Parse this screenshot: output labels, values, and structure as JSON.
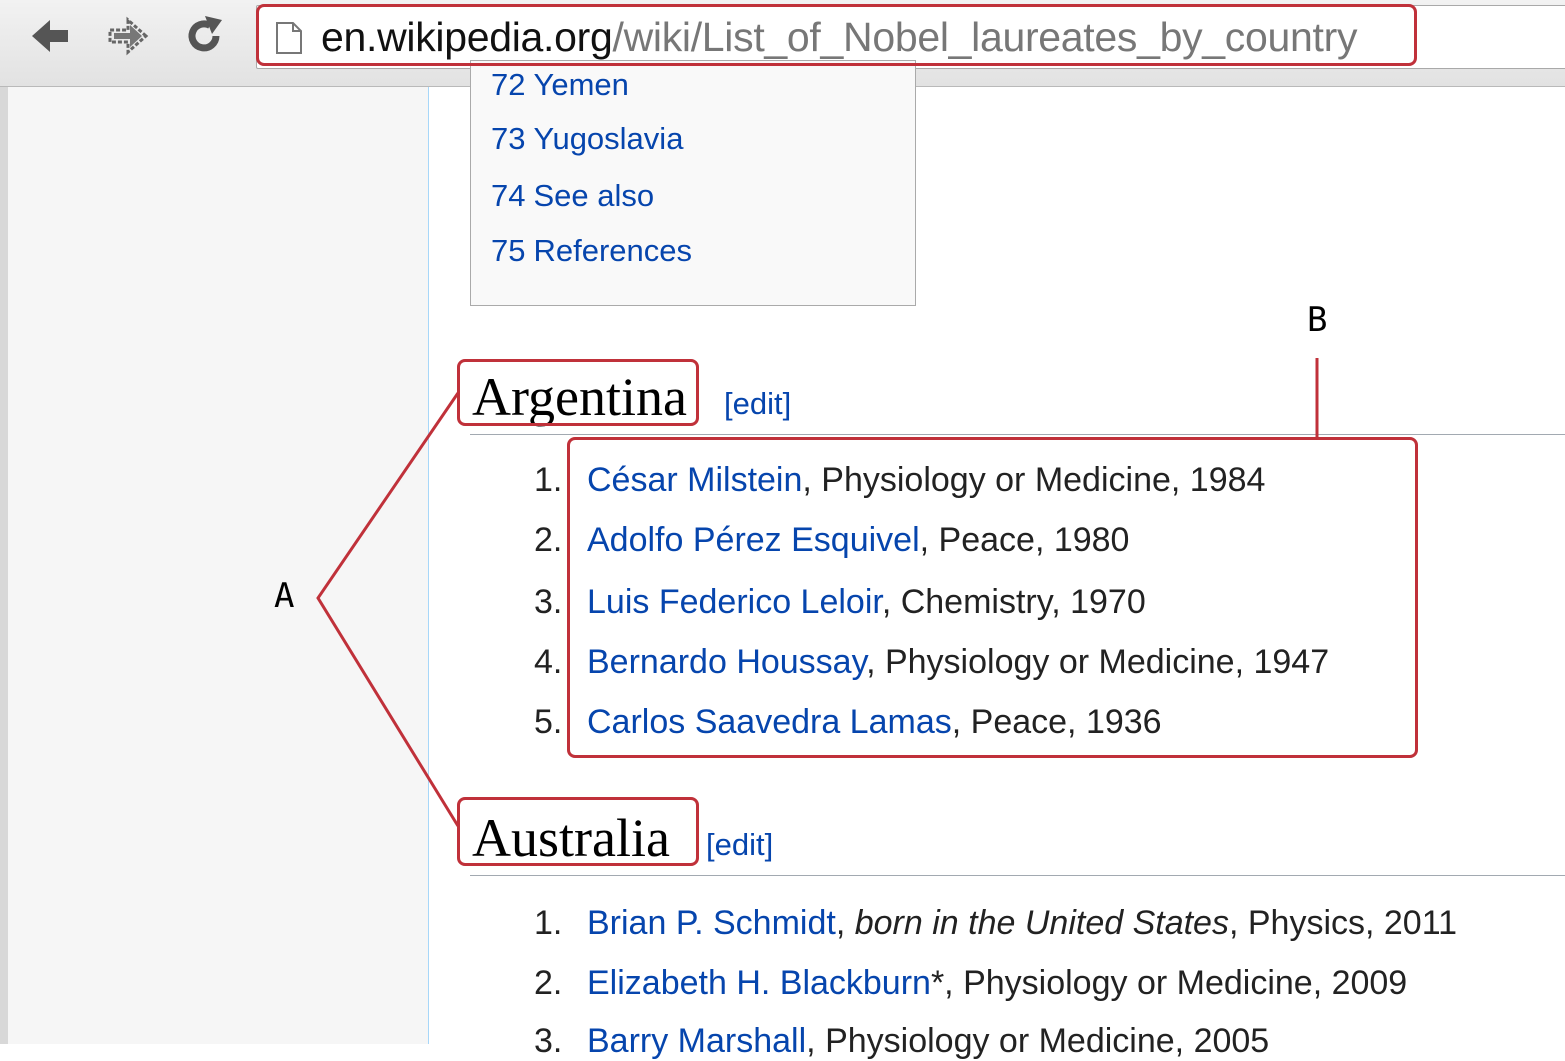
{
  "browser": {
    "url_host": "en.wikipedia.org",
    "url_path": "/wiki/List_of_Nobel_laureates_by_country",
    "icons": [
      "back-arrow-icon",
      "forward-arrow-icon",
      "reload-icon",
      "page-icon"
    ]
  },
  "toc": {
    "partial_item": "72 Yemen",
    "items": [
      {
        "num": "73",
        "label": "Yugoslavia"
      },
      {
        "num": "74",
        "label": "See also"
      },
      {
        "num": "75",
        "label": "References"
      }
    ]
  },
  "sections": [
    {
      "title": "Argentina",
      "edit": "[edit]",
      "items": [
        {
          "num": "1.",
          "name": "César Milstein",
          "rest": ", Physiology or Medicine, 1984"
        },
        {
          "num": "2.",
          "name": "Adolfo Pérez Esquivel",
          "rest": ", Peace, 1980"
        },
        {
          "num": "3.",
          "name": "Luis Federico Leloir",
          "rest": ", Chemistry, 1970"
        },
        {
          "num": "4.",
          "name": "Bernardo Houssay",
          "rest": ", Physiology or Medicine, 1947"
        },
        {
          "num": "5.",
          "name": "Carlos Saavedra Lamas",
          "rest": ", Peace, 1936"
        }
      ]
    },
    {
      "title": "Australia",
      "edit": "[edit]",
      "items": [
        {
          "num": "1.",
          "name": "Brian P. Schmidt",
          "sep": ", ",
          "note": "born in the United States",
          "rest": ", Physics, 2011"
        },
        {
          "num": "2.",
          "name": "Elizabeth H. Blackburn",
          "rest": "*, Physiology or Medicine, 2009"
        },
        {
          "num": "3.",
          "name": "Barry Marshall",
          "rest": ", Physiology or Medicine, 2005"
        }
      ]
    }
  ],
  "annotations": {
    "label_a": "A",
    "label_b": "B",
    "color": "#c0313a"
  }
}
